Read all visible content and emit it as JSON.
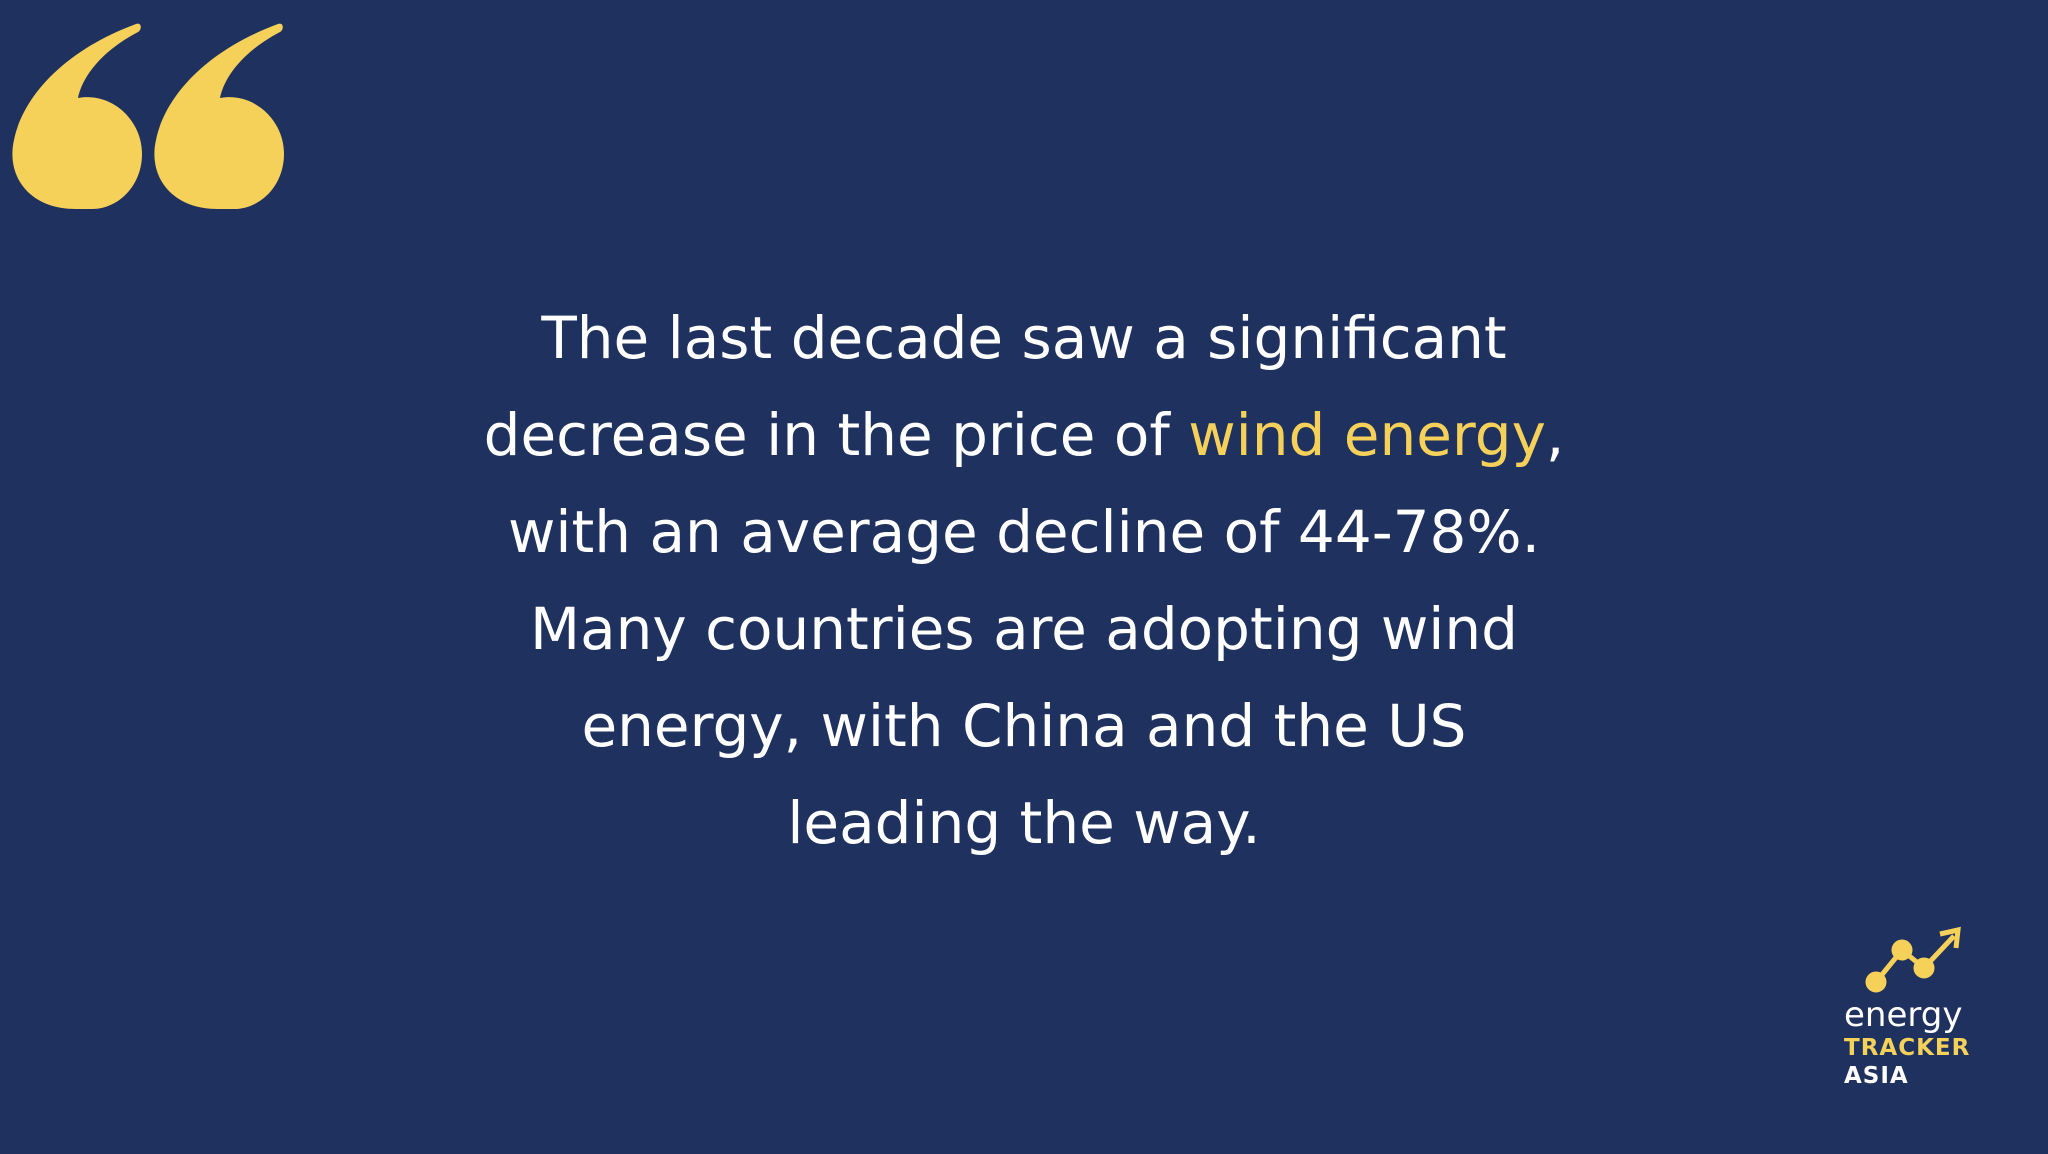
{
  "quote": {
    "lines": [
      [
        "The last decade saw a significant"
      ],
      [
        "decrease in the price of",
        "wind energy",
        ","
      ],
      [
        "with an average decline of 44-78%."
      ],
      [
        "Many countries are adopting wind"
      ],
      [
        "energy, with China and the US"
      ],
      [
        "leading the way."
      ]
    ]
  },
  "logo": {
    "line1": "energy",
    "line2": "TRACKER",
    "line3": "ASIA"
  }
}
